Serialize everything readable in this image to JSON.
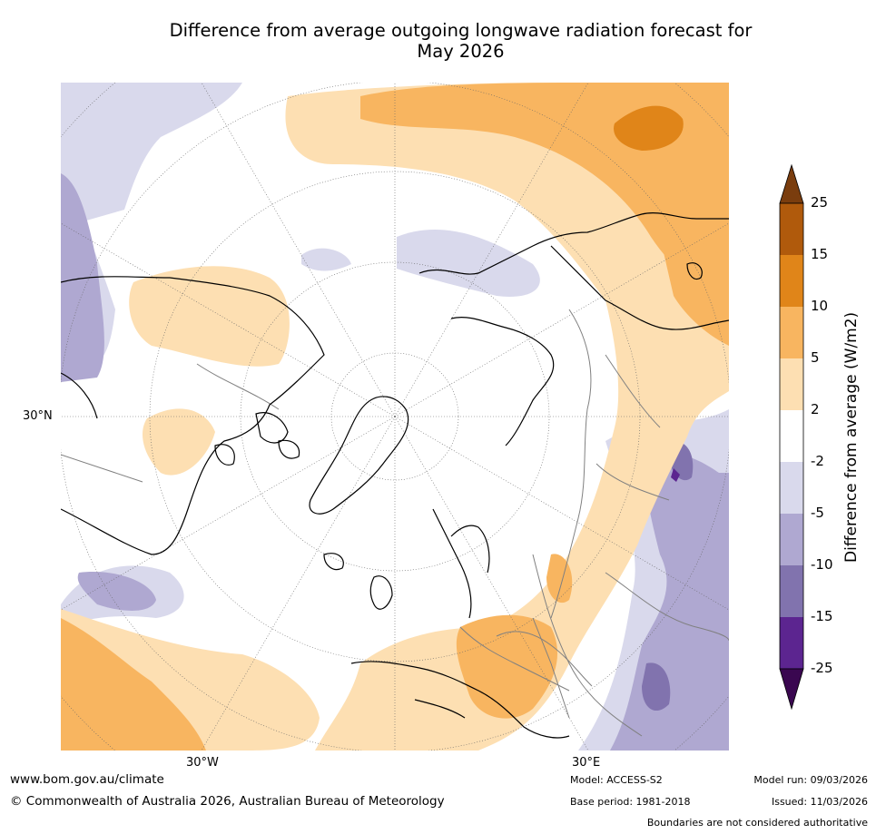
{
  "header": {
    "title_line1": "Difference from average outgoing longwave radiation forecast for",
    "title_line2": "May 2026"
  },
  "map": {
    "lon_labels": [
      "30°W",
      "30°E"
    ],
    "lat_label": "30°N",
    "ocean_color": "#ffffff",
    "coast_color": "#000000",
    "border_color": "#808080"
  },
  "colorbar": {
    "label": "Difference from average (W/m2)",
    "ticks": [
      "25",
      "15",
      "10",
      "5",
      "2",
      "-2",
      "-5",
      "-10",
      "-15",
      "-25"
    ],
    "colors": {
      "over": "#7a3d0e",
      "15_25": "#b05a0c",
      "10_15": "#e08519",
      "5_10": "#f8b560",
      "2_5": "#fddfb2",
      "m2_2": "#ffffff",
      "m5_m2": "#d9d9ec",
      "m10_m5": "#afa8d1",
      "m15_m10": "#8173ae",
      "m25_m15": "#5c2590",
      "under": "#3a0750"
    }
  },
  "footer": {
    "website": "www.bom.gov.au/climate",
    "copyright": "© Commonwealth of Australia 2026, Australian Bureau of Meteorology",
    "model": "Model: ACCESS-S2",
    "base_period": "Base period: 1981-2018",
    "model_run": "Model run: 09/03/2026",
    "issued": "Issued: 11/03/2026",
    "disclaimer": "Boundaries are not considered authoritative"
  }
}
